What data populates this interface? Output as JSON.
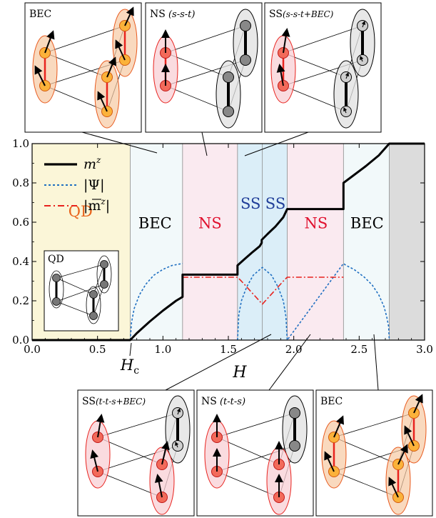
{
  "colors": {
    "qd": "#fbf6d8",
    "bec": "#f2f9fa",
    "ns": "#faeaf0",
    "ss": "#dbeef8",
    "full": "#dcdcdc",
    "mz": "#000000",
    "psi": "#1f6fc1",
    "mbar": "#e8231e",
    "qd_label": "#e8641c",
    "ns_label": "#e0102e",
    "ss_label": "#1f3d98",
    "bec_label": "#000000"
  },
  "chart_data": {
    "type": "line",
    "xlabel": "H",
    "critical_label": "H",
    "critical_sub": "c",
    "critical_x": 0.75,
    "xlim": [
      0.0,
      3.0
    ],
    "ylim": [
      0.0,
      1.0
    ],
    "xticks": [
      "0.0",
      "0.5",
      "1.0",
      "1.5",
      "2.0",
      "2.5",
      "3.0"
    ],
    "yticks": [
      "0.0",
      "0.2",
      "0.4",
      "0.6",
      "0.8",
      "1.0"
    ],
    "legend": [
      "m",
      "|Ψ|",
      "|m"
    ],
    "legend_sup": "z",
    "regions": [
      {
        "label": "QD",
        "from": 0.0,
        "to": 0.75,
        "color": "#fbf6d8",
        "label_color": "#e8641c",
        "label_x": 0.37,
        "label_y": 0.63
      },
      {
        "label": "BEC",
        "from": 0.75,
        "to": 1.15,
        "color": "#f2f9fa",
        "label_color": "#000000",
        "label_x": 0.94,
        "label_y": 0.57
      },
      {
        "label": "NS",
        "from": 1.15,
        "to": 1.57,
        "color": "#faeaf0",
        "label_color": "#e0102e",
        "label_x": 1.36,
        "label_y": 0.57
      },
      {
        "label": "SS",
        "from": 1.57,
        "to": 1.76,
        "color": "#dbeef8",
        "label_color": "#1f3d98",
        "label_x": 1.67,
        "label_y": 0.67
      },
      {
        "label": "SS",
        "from": 1.76,
        "to": 1.95,
        "color": "#dbeef8",
        "label_color": "#1f3d98",
        "label_x": 1.86,
        "label_y": 0.67
      },
      {
        "label": "NS",
        "from": 1.95,
        "to": 2.38,
        "color": "#faeaf0",
        "label_color": "#e0102e",
        "label_x": 2.17,
        "label_y": 0.57
      },
      {
        "label": "BEC",
        "from": 2.38,
        "to": 2.73,
        "color": "#f2f9fa",
        "label_color": "#000000",
        "label_x": 2.56,
        "label_y": 0.57
      },
      {
        "label": "",
        "from": 2.73,
        "to": 3.0,
        "color": "#dcdcdc",
        "label_color": "#000000",
        "label_x": 2.86,
        "label_y": 0.5
      }
    ],
    "series": [
      {
        "key": "mz",
        "x": [
          0.0,
          0.75,
          0.8,
          0.9,
          1.0,
          1.1,
          1.15,
          1.15,
          1.57,
          1.57,
          1.62,
          1.68,
          1.74,
          1.755,
          1.755,
          1.8,
          1.86,
          1.92,
          1.95,
          1.95,
          2.38,
          2.38,
          2.45,
          2.55,
          2.65,
          2.73,
          3.0
        ],
        "y": [
          0.0,
          0.0,
          0.035,
          0.095,
          0.15,
          0.2,
          0.22,
          0.333,
          0.333,
          0.38,
          0.41,
          0.445,
          0.478,
          0.495,
          0.51,
          0.54,
          0.578,
          0.625,
          0.667,
          0.667,
          0.667,
          0.8,
          0.835,
          0.885,
          0.94,
          1.0,
          1.0
        ]
      },
      {
        "key": "psi",
        "x": [
          0.75,
          0.76,
          0.78,
          0.82,
          0.87,
          0.93,
          1.0,
          1.07,
          1.15,
          1.57,
          1.58,
          1.6,
          1.64,
          1.69,
          1.76,
          1.83,
          1.88,
          1.92,
          1.94,
          1.95,
          2.38,
          2.4,
          2.46,
          2.54,
          2.6,
          2.65,
          2.69,
          2.71,
          2.725,
          2.73
        ],
        "y": [
          0.0,
          0.09,
          0.16,
          0.23,
          0.285,
          0.33,
          0.36,
          0.38,
          0.39,
          0.0,
          0.13,
          0.2,
          0.27,
          0.33,
          0.37,
          0.33,
          0.27,
          0.2,
          0.12,
          0.0,
          0.39,
          0.38,
          0.36,
          0.32,
          0.28,
          0.23,
          0.17,
          0.12,
          0.07,
          0.0
        ]
      },
      {
        "key": "mbar",
        "x": [
          1.15,
          1.57,
          1.6,
          1.76,
          1.92,
          1.95,
          2.38
        ],
        "y": [
          0.32,
          0.32,
          0.3,
          0.183,
          0.3,
          0.32,
          0.32
        ]
      }
    ]
  },
  "panels": {
    "top": [
      {
        "title": "BEC",
        "title_rest": ""
      },
      {
        "title": "NS",
        "title_rest": " (s-s-t)"
      },
      {
        "title": "SS",
        "title_rest": "(s-s-t+BEC)"
      }
    ],
    "bottom": [
      {
        "title": "SS",
        "title_rest": "(t-t-s+BEC)"
      },
      {
        "title": "NS",
        "title_rest": " (t-t-s)"
      },
      {
        "title": "BEC",
        "title_rest": ""
      }
    ],
    "inset": {
      "title": "QD"
    }
  }
}
